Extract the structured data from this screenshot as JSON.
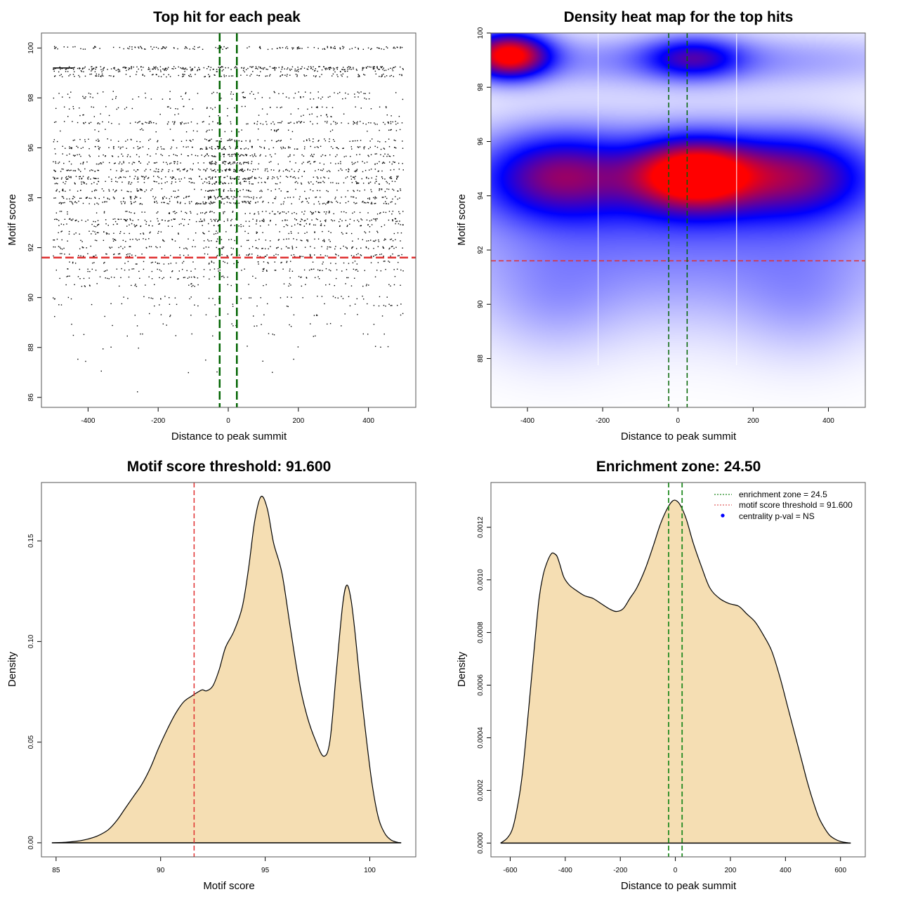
{
  "chart_data": [
    {
      "id": "scatter",
      "type": "scatter",
      "title": "Top hit for each peak",
      "xlabel": "Distance to peak summit",
      "ylabel": "Motif score",
      "xlim": [
        -533,
        535
      ],
      "ylim": [
        85.6,
        100.6
      ],
      "xticks": [
        -400,
        -200,
        0,
        200,
        400
      ],
      "yticks": [
        86,
        88,
        90,
        92,
        94,
        96,
        98,
        100
      ],
      "x_range_points": [
        -500,
        500
      ],
      "score_levels": [
        100,
        99.2,
        99.1,
        98.9,
        98.2,
        98.0,
        97.6,
        97.3,
        97.0,
        96.7,
        96.3,
        96.0,
        95.7,
        95.4,
        95.1,
        94.8,
        94.6,
        94.3,
        94.0,
        93.8,
        93.4,
        93.1,
        92.9,
        92.6,
        92.3,
        92.0,
        91.7,
        91.4,
        91.1,
        90.8,
        90.5,
        90.0,
        89.7,
        89.3,
        88.9,
        88.5,
        88.0,
        87.5,
        87.0,
        86.2
      ],
      "level_density": [
        0.55,
        0.9,
        0.35,
        0.5,
        0.18,
        0.2,
        0.2,
        0.12,
        0.5,
        0.15,
        0.4,
        0.55,
        0.5,
        0.55,
        0.65,
        0.7,
        0.5,
        0.45,
        0.55,
        0.6,
        0.4,
        0.55,
        0.35,
        0.3,
        0.35,
        0.4,
        0.35,
        0.25,
        0.3,
        0.22,
        0.18,
        0.16,
        0.12,
        0.09,
        0.07,
        0.06,
        0.03,
        0.02,
        0.015,
        0.005
      ],
      "vlines": {
        "values": [
          -24.5,
          24.5
        ],
        "color": "#006400",
        "style": "dashed"
      },
      "hline": {
        "value": 91.6,
        "color": "#e03030",
        "style": "dashed"
      }
    },
    {
      "id": "heatmap",
      "type": "heatmap",
      "title": "Density heat map for the top hits",
      "xlabel": "Distance to peak summit",
      "ylabel": "Motif score",
      "xlim": [
        -497,
        498
      ],
      "ylim": [
        86.2,
        100
      ],
      "xticks": [
        -400,
        -200,
        0,
        200,
        400
      ],
      "yticks": [
        88,
        90,
        92,
        94,
        96,
        98,
        100
      ],
      "colors": [
        "#ffffff",
        "#0000ff",
        "#ff0000"
      ],
      "hotspots": [
        {
          "x": -450,
          "y": 99.2,
          "sx": 75,
          "sy": 0.6,
          "w": 1.0
        },
        {
          "x": 40,
          "y": 94.8,
          "sx": 110,
          "sy": 0.9,
          "w": 0.95
        },
        {
          "x": -320,
          "y": 94.8,
          "sx": 140,
          "sy": 1.1,
          "w": 0.55
        },
        {
          "x": 320,
          "y": 94.8,
          "sx": 140,
          "sy": 1.1,
          "w": 0.52
        },
        {
          "x": 0,
          "y": 94.5,
          "sx": 450,
          "sy": 1.6,
          "w": 0.32
        },
        {
          "x": 40,
          "y": 99.1,
          "sx": 90,
          "sy": 0.55,
          "w": 0.45
        },
        {
          "x": 0,
          "y": 99.0,
          "sx": 500,
          "sy": 0.7,
          "w": 0.24
        },
        {
          "x": 0,
          "y": 91.5,
          "sx": 520,
          "sy": 1.8,
          "w": 0.2
        },
        {
          "x": -330,
          "y": 90.0,
          "sx": 120,
          "sy": 1.5,
          "w": 0.1
        },
        {
          "x": 330,
          "y": 90.0,
          "sx": 120,
          "sy": 1.5,
          "w": 0.1
        }
      ],
      "white_vlines": [
        -212,
        156
      ],
      "vlines": {
        "values": [
          -24.5,
          24.5
        ],
        "color": "#006400",
        "style": "dashed"
      },
      "hline": {
        "value": 91.6,
        "color": "#e03030",
        "style": "dashed"
      }
    },
    {
      "id": "score-density",
      "type": "area",
      "title": "Motif score threshold: 91.600",
      "xlabel": "Motif score",
      "ylabel": "Density",
      "xlim": [
        84.3,
        102.2
      ],
      "ylim": [
        -0.007,
        0.179
      ],
      "xticks": [
        85,
        90,
        95,
        100
      ],
      "yticks": [
        0.0,
        0.05,
        0.1,
        0.15
      ],
      "ytick_labels": [
        "0.00",
        "0.05",
        "0.10",
        "0.15"
      ],
      "x": [
        84.8,
        85.5,
        86.0,
        86.5,
        87.0,
        87.5,
        87.9,
        88.3,
        88.7,
        89.1,
        89.5,
        89.9,
        90.3,
        90.7,
        91.1,
        91.5,
        91.8,
        92.0,
        92.2,
        92.5,
        92.8,
        93.1,
        93.5,
        93.9,
        94.2,
        94.5,
        94.8,
        95.1,
        95.4,
        95.8,
        96.2,
        96.6,
        97.0,
        97.4,
        97.8,
        98.1,
        98.4,
        98.7,
        98.9,
        99.1,
        99.3,
        99.5,
        99.8,
        100.1,
        100.4,
        100.7,
        101.0,
        101.3,
        101.5
      ],
      "y": [
        0.0,
        0.0003,
        0.0008,
        0.0018,
        0.0035,
        0.0065,
        0.011,
        0.017,
        0.023,
        0.029,
        0.037,
        0.047,
        0.056,
        0.064,
        0.07,
        0.073,
        0.075,
        0.076,
        0.0755,
        0.078,
        0.086,
        0.097,
        0.105,
        0.117,
        0.136,
        0.16,
        0.172,
        0.166,
        0.149,
        0.134,
        0.107,
        0.081,
        0.063,
        0.051,
        0.043,
        0.051,
        0.085,
        0.118,
        0.128,
        0.121,
        0.104,
        0.083,
        0.055,
        0.03,
        0.013,
        0.005,
        0.0015,
        0.0003,
        0.0
      ],
      "fill": "#f5deb3",
      "vline": {
        "value": 91.6,
        "color": "#e03030",
        "style": "dashed"
      }
    },
    {
      "id": "distance-density",
      "type": "area",
      "title": "Enrichment zone: 24.50",
      "xlabel": "Distance to peak summit",
      "ylabel": "Density",
      "xlim": [
        -670,
        690
      ],
      "ylim": [
        -5.25e-05,
        0.00137
      ],
      "xticks": [
        -600,
        -400,
        -200,
        0,
        200,
        400,
        600
      ],
      "yticks": [
        0.0,
        0.0002,
        0.0004,
        0.0006,
        0.0008,
        0.001,
        0.0012
      ],
      "ytick_labels": [
        "0.0000",
        "0.0002",
        "0.0004",
        "0.0006",
        "0.0008",
        "0.0010",
        "0.0012"
      ],
      "x": [
        -635,
        -610,
        -590,
        -570,
        -555,
        -540,
        -525,
        -510,
        -495,
        -480,
        -465,
        -450,
        -440,
        -430,
        -420,
        -405,
        -385,
        -360,
        -330,
        -300,
        -270,
        -240,
        -215,
        -190,
        -165,
        -140,
        -110,
        -80,
        -55,
        -30,
        -10,
        5,
        20,
        40,
        65,
        95,
        125,
        160,
        195,
        230,
        260,
        290,
        320,
        350,
        380,
        410,
        440,
        460,
        480,
        500,
        520,
        540,
        560,
        580,
        600,
        620,
        637
      ],
      "y": [
        0.0,
        2e-05,
        6e-05,
        0.00016,
        0.00027,
        0.00043,
        0.0006,
        0.00077,
        0.00093,
        0.00102,
        0.00107,
        0.0011,
        0.0011,
        0.00109,
        0.00106,
        0.00101,
        0.00098,
        0.00096,
        0.00094,
        0.00093,
        0.00091,
        0.00089,
        0.00088,
        0.00089,
        0.00093,
        0.00097,
        0.00104,
        0.00113,
        0.00121,
        0.00127,
        0.0013,
        0.0013,
        0.00128,
        0.00123,
        0.00114,
        0.00105,
        0.00097,
        0.00093,
        0.00091,
        0.0009,
        0.00087,
        0.00084,
        0.00079,
        0.00073,
        0.00063,
        0.00051,
        0.00039,
        0.00031,
        0.00023,
        0.00016,
        0.0001,
        6e-05,
        3e-05,
        1.5e-05,
        6e-06,
        2e-06,
        0.0
      ],
      "fill": "#f5deb3",
      "vlines": {
        "values": [
          -24.5,
          24.5
        ],
        "color": "#228b22",
        "style": "dashed"
      },
      "legend": {
        "position": "top-right",
        "entries": [
          {
            "label": "enrichment zone = 24.5",
            "symbol": "dotted-line",
            "color": "#228b22"
          },
          {
            "label": "motif score threshold = 91.600",
            "symbol": "dotted-line",
            "color": "#e06060"
          },
          {
            "label": "centrality p-val = NS",
            "symbol": "dot",
            "color": "#0000ff"
          }
        ]
      }
    }
  ]
}
